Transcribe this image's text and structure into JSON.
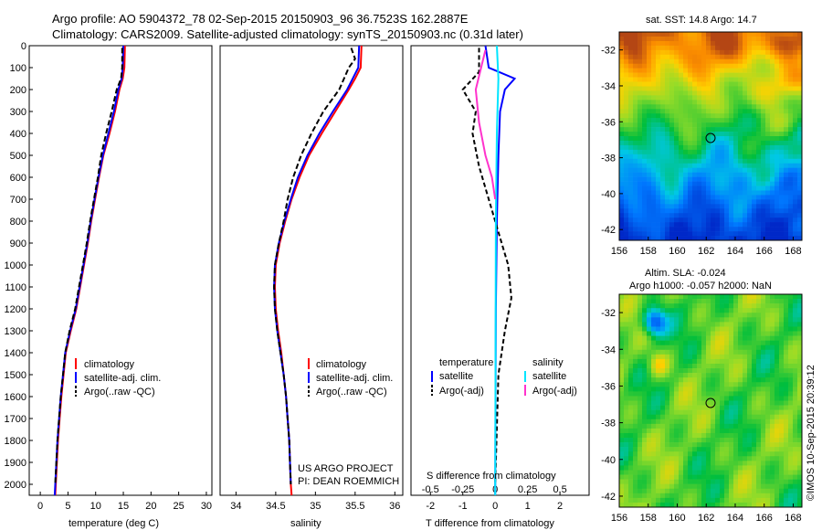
{
  "header": {
    "line1": "Argo profile: AO 5904372_78 02-Sep-2015 20150903_96 36.7523S 162.2887E",
    "line2": "Climatology: CARS2009. Satellite-adjusted climatology: synTS_20150903.nc (0.31d later)"
  },
  "colors": {
    "climatology": "#ff0000",
    "satellite": "#0000ff",
    "argo": "#000000",
    "satellite_salinity": "#00e5ff",
    "argo_salinity": "#ff33cc"
  },
  "chart_data": [
    {
      "type": "line",
      "panel": "temperature",
      "xlabel": "temperature (deg C)",
      "ylabel": "",
      "xlim": [
        -2,
        31
      ],
      "ylim": [
        2050,
        0
      ],
      "xticks": [
        0,
        5,
        10,
        15,
        20,
        25,
        30
      ],
      "yticks": [
        0,
        100,
        200,
        300,
        400,
        500,
        600,
        700,
        800,
        900,
        1000,
        1100,
        1200,
        1300,
        1400,
        1500,
        1600,
        1700,
        1800,
        1900,
        2000
      ],
      "legend": [
        "climatology",
        "satellite-adj. clim.",
        "Argo(..raw -QC)"
      ],
      "series": [
        {
          "name": "climatology",
          "color": "#ff0000",
          "dash": "",
          "points": [
            [
              15.3,
              0
            ],
            [
              15.2,
              100
            ],
            [
              14.9,
              150
            ],
            [
              14.3,
              200
            ],
            [
              13.5,
              300
            ],
            [
              12.5,
              400
            ],
            [
              11.4,
              500
            ],
            [
              10.6,
              600
            ],
            [
              9.9,
              700
            ],
            [
              9.2,
              800
            ],
            [
              8.6,
              900
            ],
            [
              7.9,
              1000
            ],
            [
              7.2,
              1100
            ],
            [
              6.5,
              1200
            ],
            [
              5.5,
              1300
            ],
            [
              4.6,
              1400
            ],
            [
              4.2,
              1500
            ],
            [
              3.8,
              1600
            ],
            [
              3.5,
              1700
            ],
            [
              3.2,
              1800
            ],
            [
              3.0,
              1900
            ],
            [
              2.8,
              2000
            ],
            [
              2.7,
              2050
            ]
          ]
        },
        {
          "name": "satellite-adj. clim.",
          "color": "#0000ff",
          "dash": "",
          "points": [
            [
              15.0,
              0
            ],
            [
              14.9,
              100
            ],
            [
              14.7,
              150
            ],
            [
              14.1,
              200
            ],
            [
              13.3,
              300
            ],
            [
              12.3,
              400
            ],
            [
              11.3,
              500
            ],
            [
              10.5,
              600
            ],
            [
              9.8,
              700
            ],
            [
              9.1,
              800
            ],
            [
              8.5,
              900
            ],
            [
              7.8,
              1000
            ],
            [
              7.1,
              1100
            ],
            [
              6.4,
              1200
            ],
            [
              5.4,
              1300
            ],
            [
              4.5,
              1400
            ],
            [
              4.1,
              1500
            ],
            [
              3.7,
              1600
            ],
            [
              3.4,
              1700
            ],
            [
              3.1,
              1800
            ],
            [
              2.9,
              1900
            ],
            [
              2.7,
              2000
            ],
            [
              2.6,
              2050
            ]
          ]
        },
        {
          "name": "Argo(..raw -QC)",
          "color": "#000000",
          "dash": "6,3",
          "points": [
            [
              14.8,
              10
            ],
            [
              14.8,
              100
            ],
            [
              14.6,
              150
            ],
            [
              13.8,
              200
            ],
            [
              12.9,
              300
            ],
            [
              11.9,
              400
            ],
            [
              11.0,
              500
            ],
            [
              10.4,
              600
            ],
            [
              9.7,
              700
            ],
            [
              9.0,
              800
            ],
            [
              8.4,
              900
            ],
            [
              7.7,
              1000
            ],
            [
              7.0,
              1100
            ],
            [
              6.3,
              1200
            ],
            [
              5.3,
              1300
            ],
            [
              4.5,
              1400
            ],
            [
              4.1,
              1500
            ],
            [
              3.7,
              1600
            ],
            [
              3.4,
              1700
            ],
            [
              3.1,
              1800
            ],
            [
              2.9,
              1900
            ],
            [
              2.7,
              2000
            ]
          ]
        }
      ]
    },
    {
      "type": "line",
      "panel": "salinity",
      "xlabel": "salinity",
      "xlim": [
        33.8,
        36.1
      ],
      "ylim": [
        2050,
        0
      ],
      "xticks": [
        34,
        34.5,
        35,
        35.5,
        36
      ],
      "legend": [
        "climatology",
        "satellite-adj. clim.",
        "Argo(..raw -QC)"
      ],
      "annotation": [
        "US ARGO PROJECT",
        "PI: DEAN ROEMMICH"
      ],
      "series": [
        {
          "name": "climatology",
          "color": "#ff0000",
          "dash": "",
          "points": [
            [
              35.58,
              0
            ],
            [
              35.57,
              100
            ],
            [
              35.5,
              150
            ],
            [
              35.42,
              200
            ],
            [
              35.25,
              300
            ],
            [
              35.08,
              400
            ],
            [
              34.92,
              500
            ],
            [
              34.8,
              600
            ],
            [
              34.7,
              700
            ],
            [
              34.62,
              800
            ],
            [
              34.55,
              900
            ],
            [
              34.5,
              1000
            ],
            [
              34.49,
              1100
            ],
            [
              34.5,
              1200
            ],
            [
              34.53,
              1300
            ],
            [
              34.57,
              1400
            ],
            [
              34.6,
              1500
            ],
            [
              34.63,
              1600
            ],
            [
              34.65,
              1700
            ],
            [
              34.67,
              1800
            ],
            [
              34.68,
              1900
            ],
            [
              34.69,
              2000
            ],
            [
              34.7,
              2050
            ]
          ]
        },
        {
          "name": "satellite-adj. clim.",
          "color": "#0000ff",
          "dash": "",
          "points": [
            [
              35.55,
              0
            ],
            [
              35.54,
              100
            ],
            [
              35.47,
              150
            ],
            [
              35.4,
              200
            ],
            [
              35.22,
              300
            ],
            [
              35.05,
              400
            ],
            [
              34.9,
              500
            ],
            [
              34.78,
              600
            ],
            [
              34.69,
              700
            ],
            [
              34.61,
              800
            ],
            [
              34.54,
              900
            ],
            [
              34.49,
              1000
            ],
            [
              34.48,
              1100
            ],
            [
              34.49,
              1200
            ],
            [
              34.52,
              1300
            ],
            [
              34.56,
              1400
            ],
            [
              34.6,
              1500
            ],
            [
              34.63,
              1600
            ],
            [
              34.65,
              1700
            ],
            [
              34.67,
              1800
            ],
            [
              34.68,
              1900
            ],
            [
              34.69,
              2000
            ]
          ]
        },
        {
          "name": "Argo(..raw -QC)",
          "color": "#000000",
          "dash": "6,3",
          "points": [
            [
              35.45,
              10
            ],
            [
              35.5,
              60
            ],
            [
              35.42,
              100
            ],
            [
              35.3,
              200
            ],
            [
              35.1,
              300
            ],
            [
              34.95,
              400
            ],
            [
              34.82,
              500
            ],
            [
              34.72,
              600
            ],
            [
              34.65,
              700
            ],
            [
              34.6,
              800
            ],
            [
              34.54,
              900
            ],
            [
              34.49,
              1000
            ],
            [
              34.48,
              1100
            ],
            [
              34.49,
              1200
            ],
            [
              34.52,
              1300
            ],
            [
              34.56,
              1400
            ],
            [
              34.6,
              1500
            ],
            [
              34.63,
              1600
            ],
            [
              34.65,
              1700
            ],
            [
              34.67,
              1800
            ],
            [
              34.68,
              1900
            ],
            [
              34.69,
              2000
            ]
          ]
        }
      ]
    },
    {
      "type": "line",
      "panel": "difference",
      "xlabel": "T difference from climatology",
      "xlabel_top": "S difference from climatology",
      "xlim": [
        -2.6,
        2.9
      ],
      "ylim": [
        2050,
        0
      ],
      "xticks_T": [
        -2,
        -1,
        0,
        1,
        2
      ],
      "xticks_S": [
        -0.5,
        -0.25,
        0,
        0.25,
        0.5
      ],
      "xtick_labels_S": [
        "-0.5",
        "-0.25",
        "0",
        "0.25",
        "0.5"
      ],
      "legend_titles": [
        "temperature",
        "salinity"
      ],
      "legend": [
        "satellite",
        "Argo(-adj)",
        "satellite",
        "Argo(-adj)"
      ],
      "series": [
        {
          "name": "satellite",
          "color": "#0000ff",
          "dash": "",
          "points": [
            [
              -0.3,
              0
            ],
            [
              -0.2,
              100
            ],
            [
              0.6,
              150
            ],
            [
              0.3,
              200
            ],
            [
              0.15,
              300
            ],
            [
              0.1,
              500
            ],
            [
              0.05,
              800
            ],
            [
              0.02,
              1200
            ],
            [
              0,
              2050
            ]
          ]
        },
        {
          "name": "Argo(-adj)",
          "color": "#000000",
          "dash": "5,3",
          "points": [
            [
              -0.5,
              10
            ],
            [
              -0.5,
              120
            ],
            [
              -1.0,
              200
            ],
            [
              -0.6,
              300
            ],
            [
              -0.7,
              400
            ],
            [
              -0.5,
              550
            ],
            [
              -0.2,
              700
            ],
            [
              0.1,
              850
            ],
            [
              0.4,
              1000
            ],
            [
              0.5,
              1150
            ],
            [
              0.3,
              1300
            ],
            [
              0.1,
              1500
            ],
            [
              0,
              2000
            ]
          ]
        },
        {
          "name": "satellite (salinity)",
          "color": "#00e5ff",
          "dash": "",
          "points": [
            [
              0.05,
              0
            ],
            [
              0.1,
              150
            ],
            [
              0.05,
              400
            ],
            [
              0.02,
              800
            ],
            [
              0,
              2050
            ]
          ]
        },
        {
          "name": "Argo(-adj) (salinity)",
          "color": "#ff33cc",
          "dash": "",
          "points": [
            [
              -0.3,
              20
            ],
            [
              -0.6,
              200
            ],
            [
              -0.5,
              350
            ],
            [
              -0.3,
              500
            ],
            [
              -0.1,
              600
            ],
            [
              0,
              700
            ]
          ]
        }
      ]
    }
  ],
  "maps": {
    "sst": {
      "title": "sat. SST: 14.8  Argo: 14.7",
      "yticks": [
        -32,
        -34,
        -36,
        -38,
        -40,
        -42
      ],
      "xticks": [
        156,
        158,
        160,
        162,
        164,
        166,
        168
      ]
    },
    "sla": {
      "title_line1": "Altim. SLA: -0.024",
      "title_line2": "Argo h1000: -0.057 h2000: NaN",
      "yticks": [
        -32,
        -34,
        -36,
        -38,
        -40,
        -42
      ],
      "xticks": [
        156,
        158,
        160,
        162,
        164,
        166,
        168
      ]
    }
  },
  "credit": "©IMOS 10-Sep-2015 20:39:12"
}
